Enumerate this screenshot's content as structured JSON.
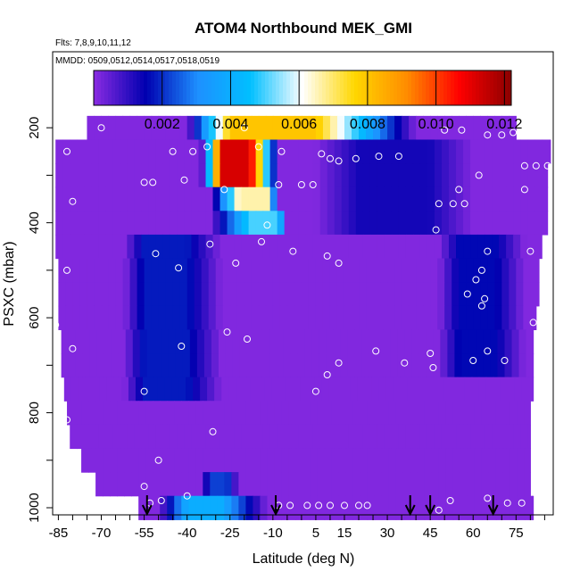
{
  "chart_data": {
    "type": "heatmap",
    "title": "ATOM4 Northbound MEK_GMI",
    "annotations": [
      "Flts: 7,8,9,10,11,12",
      "MMDD: 0509,0512,0514,0517,0518,0519"
    ],
    "xlabel": "Latitude (deg N)",
    "ylabel": "PSXC (mbar)",
    "xlim": [
      -87,
      88
    ],
    "ylim": [
      1015,
      40
    ],
    "x_ticks": [
      -85,
      -70,
      -55,
      -40,
      -25,
      -10,
      5,
      15,
      30,
      45,
      60,
      75
    ],
    "y_ticks": [
      200,
      400,
      600,
      800,
      1000
    ],
    "colorbar": {
      "range": [
        0,
        0.0122
      ],
      "ticks": [
        0.002,
        0.004,
        0.006,
        0.008,
        0.01,
        0.012
      ],
      "tick_labels": [
        "0.002",
        "0.004",
        "0.006",
        "0.008",
        "0.010",
        "0.012"
      ],
      "colors": [
        "#8a2be2",
        "#0000b0",
        "#1e90ff",
        "#00bfff",
        "#ffffff",
        "#ffd700",
        "#ff8c00",
        "#ff0000",
        "#8b0000"
      ],
      "legend_position": "top"
    },
    "arrows_latitude": [
      -54,
      -9,
      38,
      45,
      67
    ],
    "pressure_levels": [
      200,
      250,
      300,
      350,
      400,
      450,
      500,
      550,
      600,
      650,
      700,
      750,
      800,
      850,
      900,
      950,
      1000
    ],
    "row_extents": [
      [
        -75,
        75
      ],
      [
        -86,
        87
      ],
      [
        -86,
        86
      ],
      [
        -86,
        86
      ],
      [
        -86,
        86
      ],
      [
        -86,
        84
      ],
      [
        -85,
        83
      ],
      [
        -85,
        83
      ],
      [
        -85,
        82
      ],
      [
        -84,
        81
      ],
      [
        -84,
        81
      ],
      [
        -83,
        81
      ],
      [
        -82,
        80
      ],
      [
        -81,
        80
      ],
      [
        -77,
        80
      ],
      [
        -72,
        80
      ],
      [
        -57,
        81
      ]
    ],
    "base_value": 0.0001,
    "features": [
      {
        "p": [
          200,
          200
        ],
        "lat": [
          -40,
          40
        ],
        "peak": 0.008,
        "core": [
          -25,
          5
        ]
      },
      {
        "p": [
          250,
          300
        ],
        "lat": [
          -35,
          -8
        ],
        "peak": 0.0112,
        "core": [
          -28,
          -18
        ]
      },
      {
        "p": [
          350,
          350
        ],
        "lat": [
          -32,
          -8
        ],
        "peak": 0.0066,
        "core": [
          -22,
          -12
        ]
      },
      {
        "p": [
          400,
          400
        ],
        "lat": [
          -32,
          -5
        ],
        "peak": 0.005,
        "core": [
          -18,
          -8
        ]
      },
      {
        "p": [
          1000,
          1000
        ],
        "lat": [
          -50,
          -12
        ],
        "peak": 0.004,
        "core": [
          -40,
          -28
        ]
      },
      {
        "p": [
          950,
          950
        ],
        "lat": [
          -35,
          -22
        ],
        "peak": 0.0022,
        "core": [
          -32,
          -26
        ]
      },
      {
        "p": [
          450,
          750
        ],
        "lat": [
          -62,
          -28
        ],
        "peak": 0.0018,
        "core": [
          -55,
          -40
        ]
      },
      {
        "p": [
          450,
          700
        ],
        "lat": [
          48,
          78
        ],
        "peak": 0.0016,
        "core": [
          55,
          68
        ]
      },
      {
        "p": [
          250,
          400
        ],
        "lat": [
          5,
          60
        ],
        "peak": 0.0013,
        "core": [
          20,
          45
        ]
      }
    ],
    "observations": [
      [
        -86,
        210
      ],
      [
        -70,
        200
      ],
      [
        -82,
        250
      ],
      [
        -45,
        250
      ],
      [
        -38,
        250
      ],
      [
        -33,
        240
      ],
      [
        -20,
        200
      ],
      [
        -15,
        240
      ],
      [
        -7,
        250
      ],
      [
        7,
        255
      ],
      [
        10,
        265
      ],
      [
        13,
        270
      ],
      [
        19,
        265
      ],
      [
        27,
        260
      ],
      [
        34,
        260
      ],
      [
        50,
        205
      ],
      [
        56,
        205
      ],
      [
        65,
        215
      ],
      [
        70,
        215
      ],
      [
        74,
        210
      ],
      [
        78,
        280
      ],
      [
        82,
        280
      ],
      [
        86,
        280
      ],
      [
        62,
        300
      ],
      [
        78,
        330
      ],
      [
        55,
        330
      ],
      [
        53,
        360
      ],
      [
        48,
        360
      ],
      [
        57,
        360
      ],
      [
        47,
        415
      ],
      [
        65,
        460
      ],
      [
        61,
        520
      ],
      [
        63,
        500
      ],
      [
        80,
        460
      ],
      [
        58,
        550
      ],
      [
        -80,
        355
      ],
      [
        -55,
        315
      ],
      [
        -52,
        315
      ],
      [
        -41,
        310
      ],
      [
        -8,
        320
      ],
      [
        0,
        320
      ],
      [
        4,
        320
      ],
      [
        -27,
        330
      ],
      [
        -12,
        405
      ],
      [
        -32,
        445
      ],
      [
        -51,
        465
      ],
      [
        -43,
        495
      ],
      [
        -23,
        485
      ],
      [
        -3,
        460
      ],
      [
        -14,
        440
      ],
      [
        9,
        470
      ],
      [
        13,
        485
      ],
      [
        -82,
        500
      ],
      [
        -86,
        615
      ],
      [
        -80,
        665
      ],
      [
        -42,
        660
      ],
      [
        -26,
        630
      ],
      [
        -19,
        645
      ],
      [
        -55,
        755
      ],
      [
        5,
        755
      ],
      [
        9,
        720
      ],
      [
        13,
        695
      ],
      [
        26,
        670
      ],
      [
        36,
        695
      ],
      [
        45,
        675
      ],
      [
        46,
        705
      ],
      [
        60,
        690
      ],
      [
        65,
        670
      ],
      [
        64,
        560
      ],
      [
        63,
        575
      ],
      [
        71,
        690
      ],
      [
        81,
        610
      ],
      [
        84,
        610
      ],
      [
        -82,
        815
      ],
      [
        -50,
        900
      ],
      [
        -55,
        955
      ],
      [
        -31,
        840
      ],
      [
        -53,
        990
      ],
      [
        -49,
        985
      ],
      [
        -40,
        975
      ],
      [
        -8,
        995
      ],
      [
        -4,
        995
      ],
      [
        2,
        995
      ],
      [
        6,
        995
      ],
      [
        10,
        995
      ],
      [
        15,
        995
      ],
      [
        20,
        995
      ],
      [
        23,
        995
      ],
      [
        48,
        1005
      ],
      [
        52,
        985
      ],
      [
        65,
        980
      ],
      [
        72,
        990
      ],
      [
        77,
        990
      ],
      [
        85,
        995
      ]
    ]
  }
}
